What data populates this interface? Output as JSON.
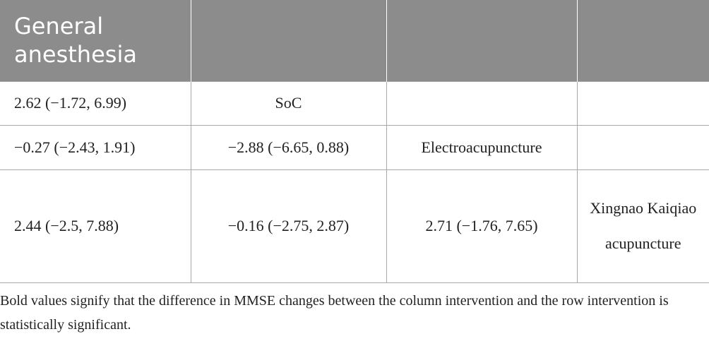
{
  "table": {
    "header": "General anesthesia",
    "rows": [
      [
        "2.62 (−1.72, 6.99)",
        "SoC"
      ],
      [
        "−0.27 (−2.43, 1.91)",
        "−2.88 (−6.65, 0.88)",
        "Electroacupuncture"
      ],
      [
        "2.44 (−2.5, 7.88)",
        "−0.16 (−2.75, 2.87)",
        "2.71 (−1.76, 7.65)",
        "Xingnao Kaiqiao acupuncture"
      ]
    ]
  },
  "footnote": "Bold values signify that the difference in MMSE changes between the column intervention and the row intervention is statistically significant."
}
